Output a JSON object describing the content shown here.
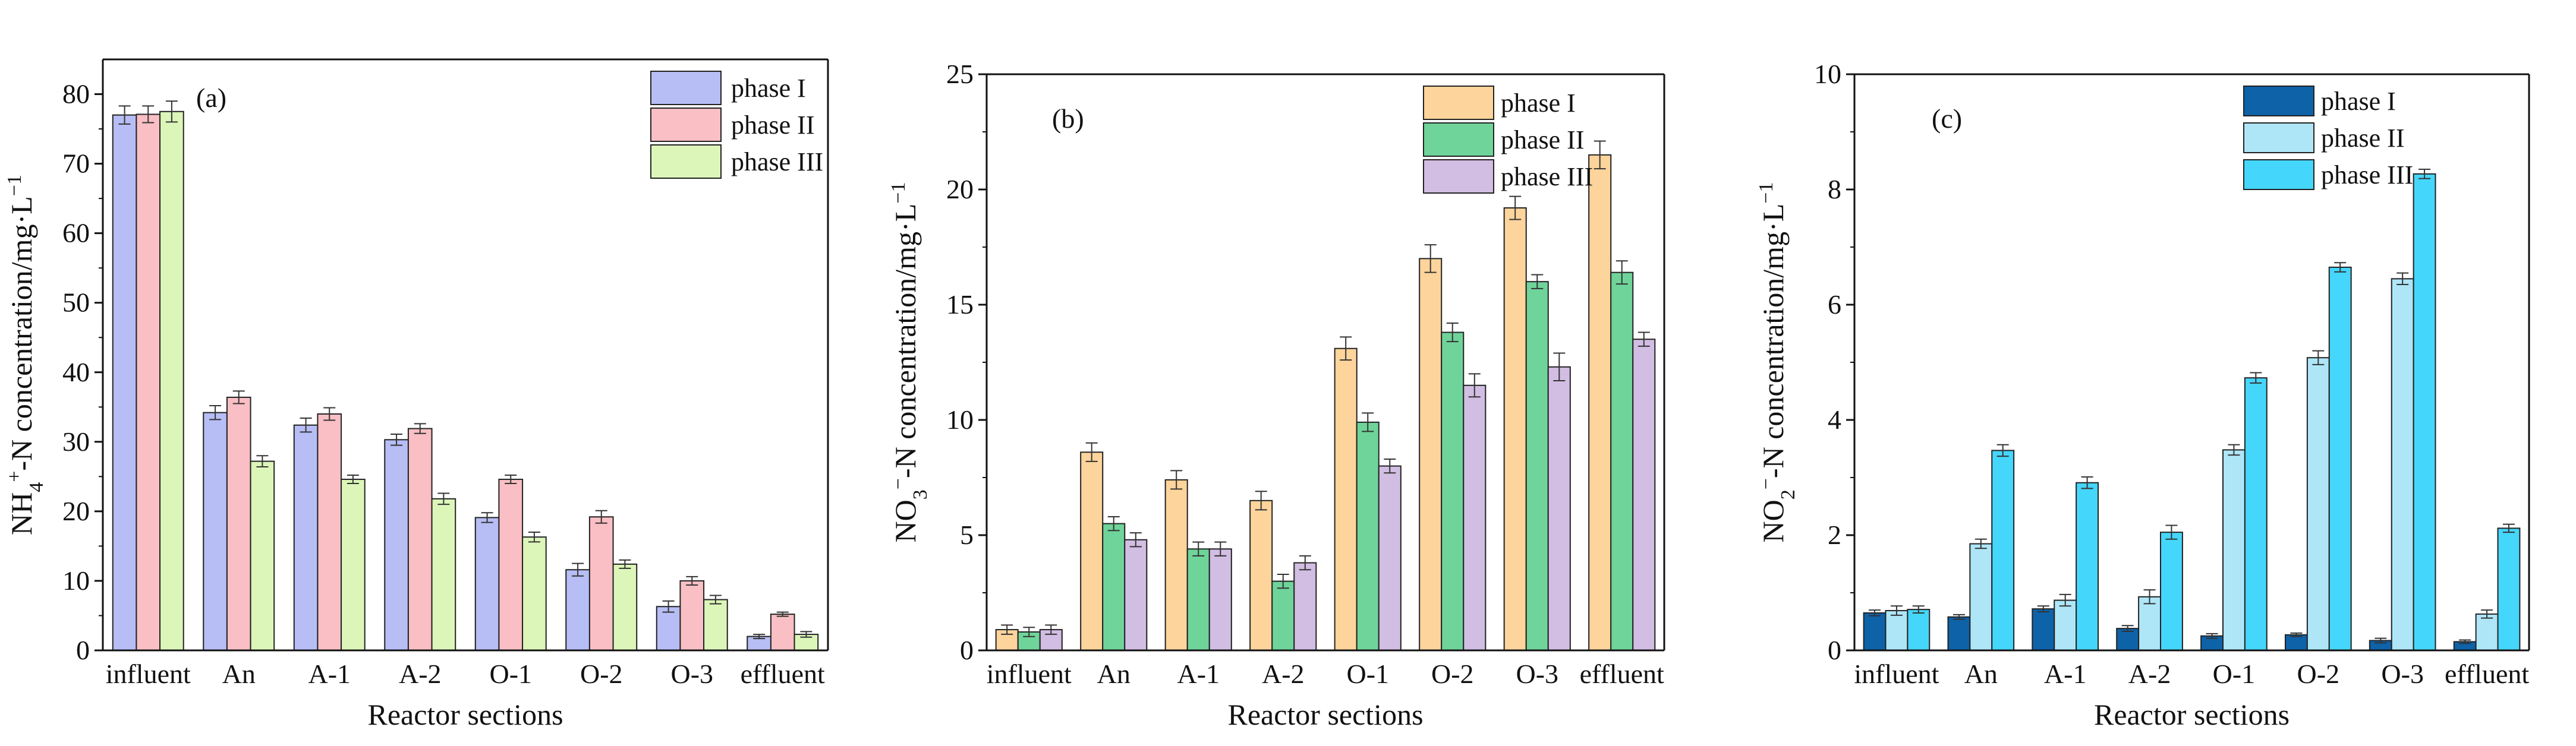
{
  "chart_data": [
    {
      "type": "bar",
      "panel_label": "(a)",
      "categories": [
        "influent",
        "An",
        "A-1",
        "A-2",
        "O-1",
        "O-2",
        "O-3",
        "effluent"
      ],
      "xlabel": "Reactor sections",
      "ylabel": {
        "prefix": "NH",
        "sub": "4",
        "sup": "+",
        "suffix": "-N concentration/mg·L",
        "tail_sup": "−1"
      },
      "ylim": [
        0,
        85
      ],
      "yticks": [
        0,
        10,
        20,
        30,
        40,
        50,
        60,
        70,
        80
      ],
      "legend_position": "top-right",
      "series": [
        {
          "name": "phase I",
          "color": "#b7bdf5",
          "values": [
            77.0,
            34.2,
            32.4,
            30.3,
            19.1,
            11.6,
            6.3,
            2.0
          ],
          "errors": [
            1.3,
            1.0,
            1.0,
            0.8,
            0.7,
            0.9,
            0.8,
            0.3
          ]
        },
        {
          "name": "phase II",
          "color": "#f9bfc4",
          "values": [
            77.1,
            36.4,
            34.0,
            31.9,
            24.6,
            19.2,
            10.0,
            5.2
          ],
          "errors": [
            1.2,
            0.9,
            0.9,
            0.7,
            0.6,
            0.9,
            0.6,
            0.3
          ]
        },
        {
          "name": "phase III",
          "color": "#dcf6b9",
          "values": [
            77.5,
            27.2,
            24.6,
            21.8,
            16.3,
            12.4,
            7.3,
            2.3
          ],
          "errors": [
            1.5,
            0.8,
            0.6,
            0.8,
            0.7,
            0.6,
            0.6,
            0.4
          ]
        }
      ]
    },
    {
      "type": "bar",
      "panel_label": "(b)",
      "categories": [
        "influent",
        "An",
        "A-1",
        "A-2",
        "O-1",
        "O-2",
        "O-3",
        "effluent"
      ],
      "xlabel": "Reactor sections",
      "ylabel": {
        "prefix": "NO",
        "sub": "3",
        "sup": "−",
        "suffix": "-N concentration/mg·L",
        "tail_sup": "−1"
      },
      "ylim": [
        0,
        25
      ],
      "yticks": [
        0,
        5,
        10,
        15,
        20,
        25
      ],
      "legend_position": "top-right",
      "series": [
        {
          "name": "phase I",
          "color": "#fdd49b",
          "values": [
            0.9,
            8.6,
            7.4,
            6.5,
            13.1,
            17.0,
            19.2,
            21.5
          ],
          "errors": [
            0.2,
            0.4,
            0.4,
            0.4,
            0.5,
            0.6,
            0.5,
            0.6
          ]
        },
        {
          "name": "phase II",
          "color": "#6fd49a",
          "values": [
            0.8,
            5.5,
            4.4,
            3.0,
            9.9,
            13.8,
            16.0,
            16.4
          ],
          "errors": [
            0.2,
            0.3,
            0.3,
            0.3,
            0.4,
            0.4,
            0.3,
            0.5
          ]
        },
        {
          "name": "phase III",
          "color": "#d2bde3",
          "values": [
            0.9,
            4.8,
            4.4,
            3.8,
            8.0,
            11.5,
            12.3,
            13.5
          ],
          "errors": [
            0.2,
            0.3,
            0.3,
            0.3,
            0.3,
            0.5,
            0.6,
            0.3
          ]
        }
      ]
    },
    {
      "type": "bar",
      "panel_label": "(c)",
      "categories": [
        "influent",
        "An",
        "A-1",
        "A-2",
        "O-1",
        "O-2",
        "O-3",
        "effluent"
      ],
      "xlabel": "Reactor sections",
      "ylabel": {
        "prefix": "NO",
        "sub": "2",
        "sup": "−",
        "suffix": "-N concentration/mg·L",
        "tail_sup": "−1"
      },
      "ylim": [
        0,
        10
      ],
      "yticks": [
        0,
        2,
        4,
        6,
        8,
        10
      ],
      "legend_position": "top-right",
      "series": [
        {
          "name": "phase I",
          "color": "#0e62a8",
          "values": [
            0.65,
            0.58,
            0.72,
            0.38,
            0.25,
            0.27,
            0.17,
            0.15
          ],
          "errors": [
            0.05,
            0.04,
            0.05,
            0.05,
            0.04,
            0.03,
            0.04,
            0.03
          ]
        },
        {
          "name": "phase II",
          "color": "#aee6f8",
          "values": [
            0.69,
            1.85,
            0.87,
            0.93,
            3.48,
            5.08,
            6.45,
            0.63
          ],
          "errors": [
            0.08,
            0.08,
            0.1,
            0.12,
            0.09,
            0.12,
            0.1,
            0.07
          ]
        },
        {
          "name": "phase III",
          "color": "#45d6fb",
          "values": [
            0.71,
            3.47,
            2.91,
            2.05,
            4.73,
            6.65,
            8.27,
            2.12
          ],
          "errors": [
            0.06,
            0.1,
            0.1,
            0.12,
            0.09,
            0.08,
            0.08,
            0.07
          ]
        }
      ]
    }
  ]
}
